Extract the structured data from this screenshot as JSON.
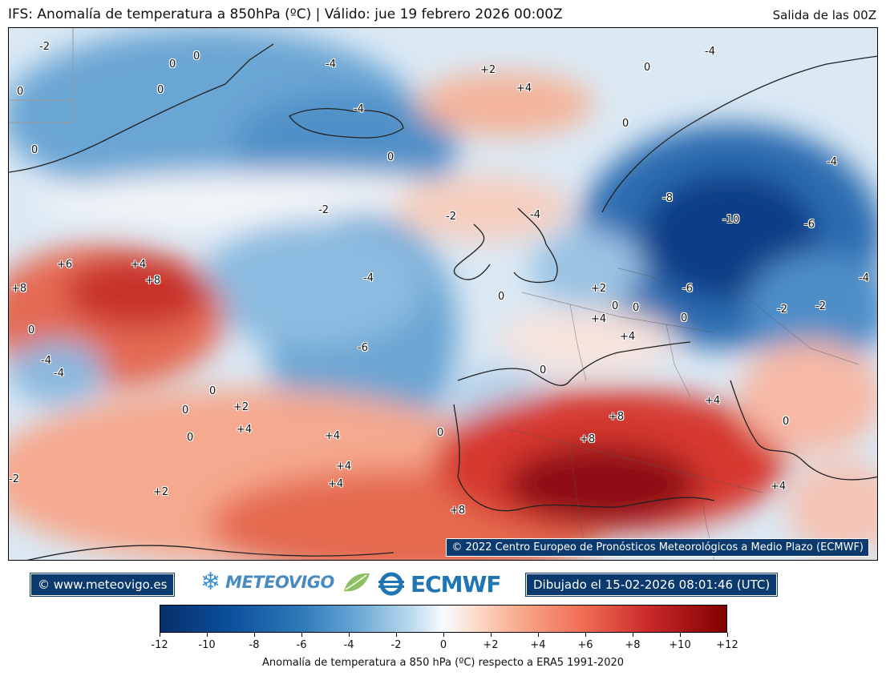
{
  "header": {
    "title": "IFS: Anomalía de temperatura a 850hPa  (ºC) | Válido: jue 19 febrero 2026 00:00Z",
    "run": "Salida de las 00Z"
  },
  "map": {
    "copyright": "© 2022 Centro Europeo de Pronósticos Meteorológicos a Medio Plazo (ECMWF)",
    "contour_labels": [
      "-2",
      "0",
      "-4",
      "+2",
      "+4",
      "0",
      "-4",
      "-4",
      "0",
      "0",
      "0",
      "0",
      "0",
      "-2",
      "-4",
      "0",
      "-2",
      "-4",
      "-8",
      "-10",
      "-6",
      "-4",
      "-6",
      "-2",
      "-2",
      "+6",
      "+4",
      "+8",
      "+8",
      "0",
      "-4",
      "-4",
      "-4",
      "-6",
      "+2",
      "0",
      "0",
      "+4",
      "+4",
      "0",
      "0",
      "0",
      "0",
      "+2",
      "+8",
      "+8",
      "+4",
      "+4",
      "+4",
      "+4",
      "+4",
      "0",
      "0",
      "0",
      "+2",
      "+8",
      "+4",
      "0",
      "-2"
    ],
    "colors": {
      "ocean_base": "#c9dff0",
      "land_line": "#222222"
    }
  },
  "footer": {
    "site": "© www.meteovigo.es",
    "meteovigo_logo": "METEOVIGO",
    "ecmwf_logo": "ECMWF",
    "drawn": "Dibujado el 15-02-2026 08:01:46 (UTC)"
  },
  "colorbar": {
    "ticks": [
      "-12",
      "-10",
      "-8",
      "-6",
      "-4",
      "-2",
      "0",
      "+2",
      "+4",
      "+6",
      "+8",
      "+10",
      "+12"
    ],
    "label": "Anomalía de temperatura a 850 hPa (ºC) respecto a ERA5 1991-2020",
    "min": -12,
    "max": 12
  }
}
